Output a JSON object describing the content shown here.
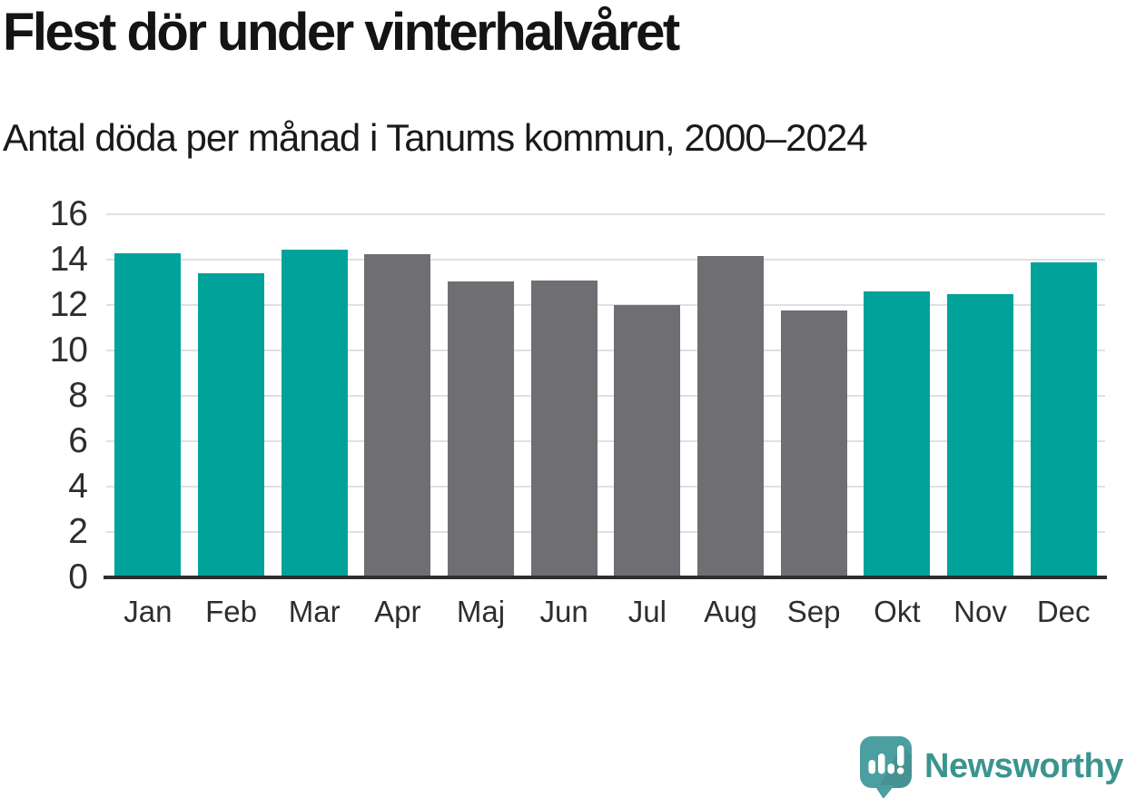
{
  "chart_data": {
    "type": "bar",
    "title": "Flest dör under vinterhalvåret",
    "subtitle": "Antal döda per månad i Tanums kommun, 2000–2024",
    "categories": [
      "Jan",
      "Feb",
      "Mar",
      "Apr",
      "Maj",
      "Jun",
      "Jul",
      "Aug",
      "Sep",
      "Okt",
      "Nov",
      "Dec"
    ],
    "values": [
      14.3,
      13.4,
      14.45,
      14.25,
      13.05,
      13.1,
      12.0,
      14.15,
      11.75,
      12.6,
      12.5,
      13.9
    ],
    "bar_groups": [
      "winter",
      "winter",
      "winter",
      "summer",
      "summer",
      "summer",
      "summer",
      "summer",
      "summer",
      "winter",
      "winter",
      "winter"
    ],
    "palette": {
      "winter": "#00a29a",
      "summer": "#6e6e73"
    },
    "xlabel": "",
    "ylabel": "",
    "ylim": [
      0,
      16
    ],
    "yticks": [
      0,
      2,
      4,
      6,
      8,
      10,
      12,
      14,
      16
    ],
    "grid": true,
    "legend": false,
    "gridline_color": "#e0e0e0",
    "axis_color": "#2e2e2e"
  },
  "footer": {
    "brand": "Newsworthy",
    "logo_icon": "newsworthy-speech-bubble-bar-chart-icon",
    "brand_color": "#3b948f",
    "logo_bubble_color": "#4c9fa0"
  }
}
